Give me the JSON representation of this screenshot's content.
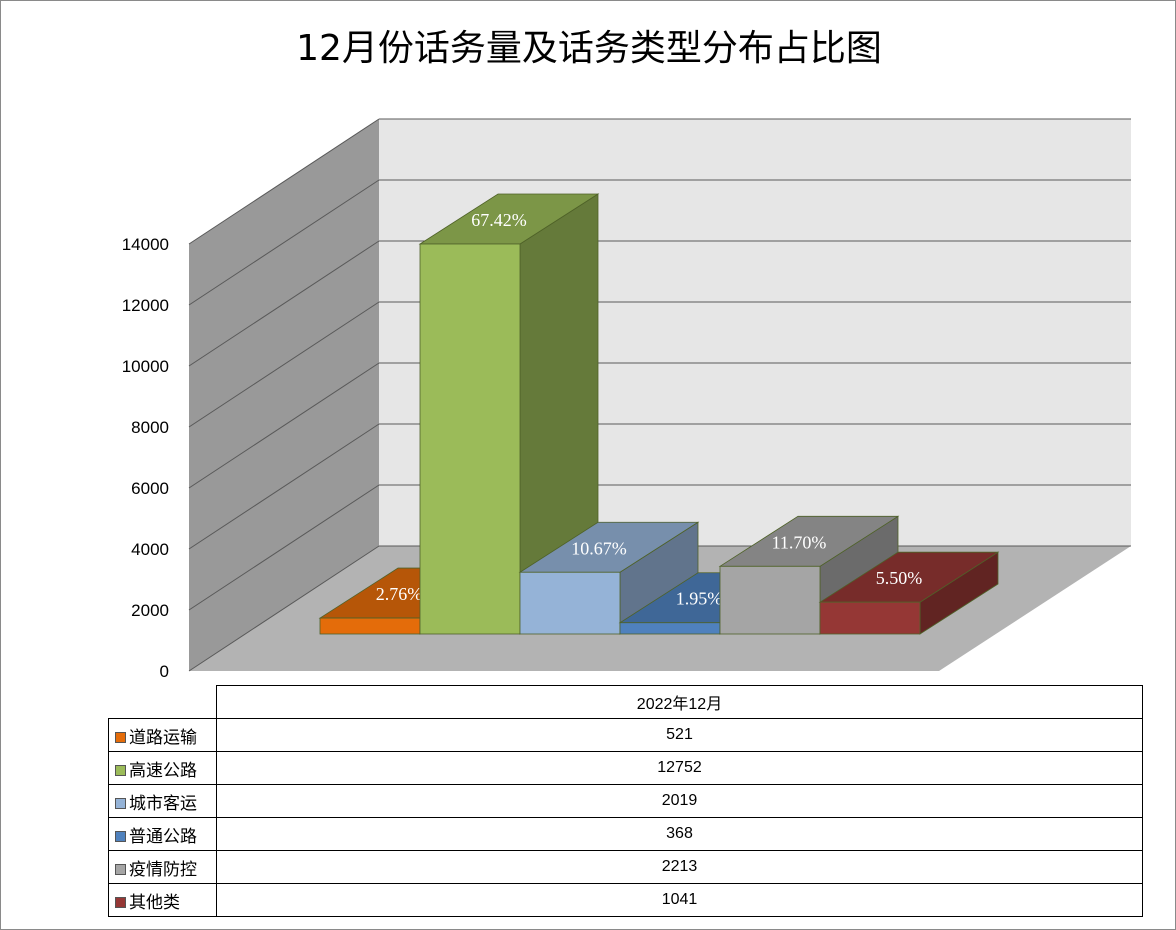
{
  "chart_data": {
    "type": "bar",
    "title": "12月份话务量及话务类型分布占比图",
    "categories": [
      "2022年12月"
    ],
    "series": [
      {
        "name": "道路运输",
        "values": [
          521
        ],
        "label": "2.76%",
        "color": "#e46c0a"
      },
      {
        "name": "高速公路",
        "values": [
          12752
        ],
        "label": "67.42%",
        "color": "#9bbb59"
      },
      {
        "name": "城市客运",
        "values": [
          2019
        ],
        "label": "10.67%",
        "color": "#95b3d7"
      },
      {
        "name": "普通公路",
        "values": [
          368
        ],
        "label": "1.95%",
        "color": "#4f81bd"
      },
      {
        "name": "疫情防控",
        "values": [
          2213
        ],
        "label": "11.70%",
        "color": "#a5a5a5"
      },
      {
        "name": "其他类",
        "values": [
          1041
        ],
        "label": "5.50%",
        "color": "#953735"
      }
    ],
    "yticks": [
      "0",
      "2000",
      "4000",
      "6000",
      "8000",
      "10000",
      "12000",
      "14000"
    ],
    "ylim": [
      0,
      14000
    ],
    "grid": true,
    "legend": "data-table"
  }
}
